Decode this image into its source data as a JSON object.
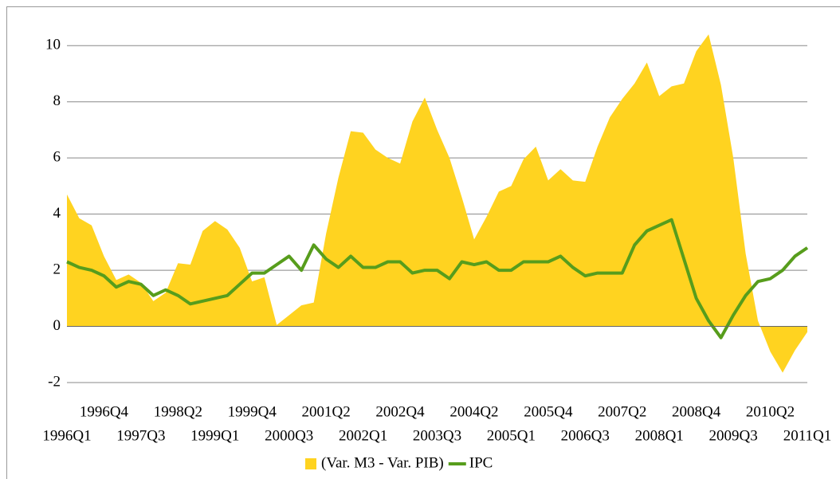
{
  "chart_data": {
    "type": "area-line",
    "categories": [
      "1996Q1",
      null,
      null,
      "1996Q4",
      null,
      null,
      "1997Q3",
      null,
      null,
      "1998Q2",
      null,
      null,
      "1999Q1",
      null,
      null,
      "1999Q4",
      null,
      null,
      "2000Q3",
      null,
      null,
      "2001Q2",
      null,
      null,
      "2002Q1",
      null,
      null,
      "2002Q4",
      null,
      null,
      "2003Q3",
      null,
      null,
      "2004Q2",
      null,
      null,
      "2005Q1",
      null,
      null,
      "2005Q4",
      null,
      null,
      "2006Q3",
      null,
      null,
      "2007Q2",
      null,
      null,
      "2008Q1",
      null,
      null,
      "2008Q4",
      null,
      null,
      "2009Q3",
      null,
      null,
      "2010Q2",
      null,
      null,
      "2011Q1"
    ],
    "series": [
      {
        "name": "(Var. M3 - Var. PIB)",
        "color": "#ffd320",
        "kind": "area",
        "values": [
          4.7,
          3.85,
          3.6,
          2.5,
          1.65,
          1.85,
          1.55,
          0.9,
          1.2,
          2.25,
          2.2,
          3.4,
          3.75,
          3.45,
          2.8,
          1.6,
          1.75,
          0.05,
          0.4,
          0.75,
          0.85,
          3.3,
          5.3,
          6.95,
          6.9,
          6.3,
          6.0,
          5.8,
          7.3,
          8.15,
          7.0,
          6.0,
          4.6,
          3.1,
          3.9,
          4.8,
          5.0,
          5.95,
          6.4,
          5.2,
          5.6,
          5.2,
          5.15,
          6.4,
          7.45,
          8.1,
          8.65,
          9.4,
          8.2,
          8.55,
          8.65,
          9.8,
          10.4,
          8.6,
          6.0,
          2.6,
          0.2,
          -0.9,
          -1.65,
          -0.85,
          -0.2
        ]
      },
      {
        "name": "IPC",
        "color": "#579d1c",
        "kind": "line",
        "values": [
          2.3,
          2.1,
          2.0,
          1.8,
          1.4,
          1.6,
          1.5,
          1.1,
          1.3,
          1.1,
          0.8,
          0.9,
          1.0,
          1.1,
          1.5,
          1.9,
          1.9,
          2.2,
          2.5,
          2.0,
          2.9,
          2.4,
          2.1,
          2.5,
          2.1,
          2.1,
          2.3,
          2.3,
          1.9,
          2.0,
          2.0,
          1.7,
          2.3,
          2.2,
          2.3,
          2.0,
          2.0,
          2.3,
          2.3,
          2.3,
          2.5,
          2.1,
          1.8,
          1.9,
          1.9,
          1.9,
          2.9,
          3.4,
          3.6,
          3.8,
          2.4,
          1.0,
          0.2,
          -0.4,
          0.4,
          1.1,
          1.6,
          1.7,
          2.0,
          2.5,
          2.8
        ]
      }
    ],
    "ylim": [
      -2,
      11
    ],
    "yticks": [
      -2,
      0,
      2,
      4,
      6,
      8,
      10
    ],
    "grid": true,
    "legend": "bottom"
  }
}
